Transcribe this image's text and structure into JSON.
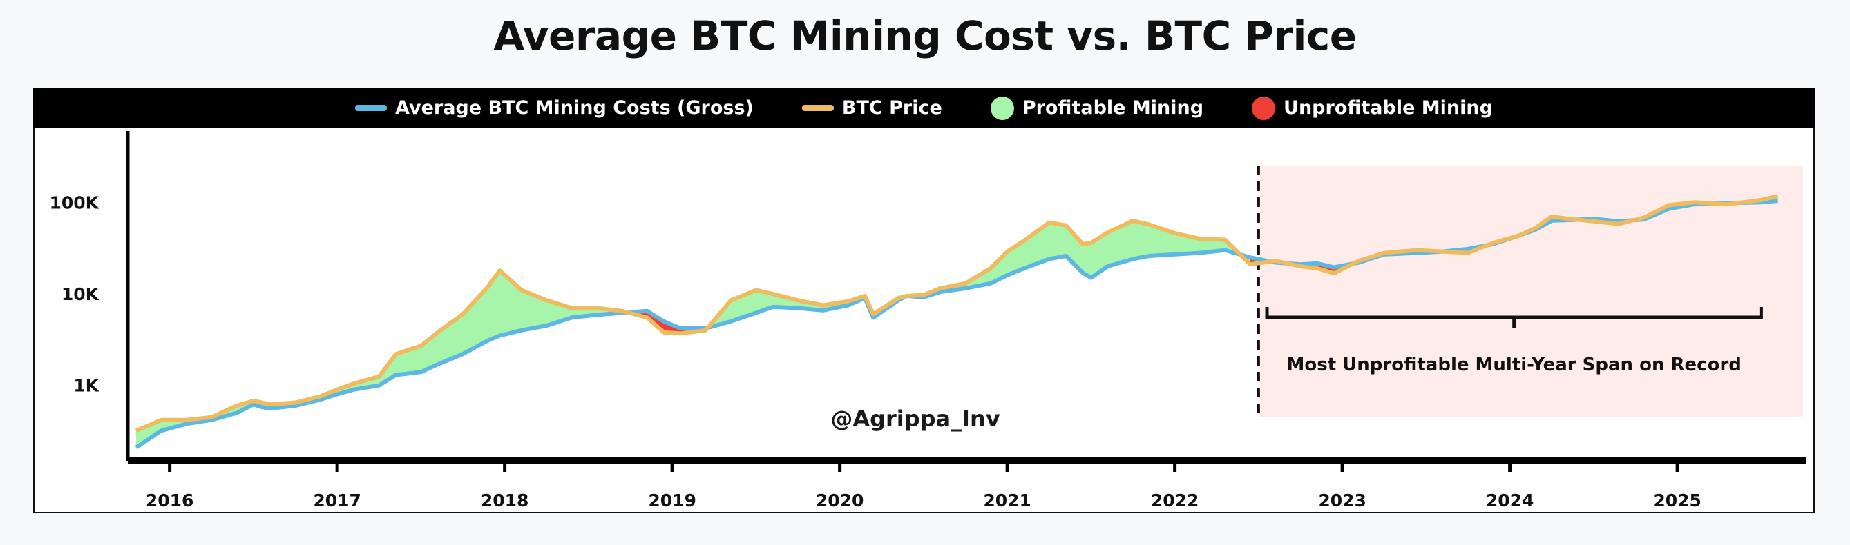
{
  "chart_data": {
    "type": "line",
    "title": "Average BTC Mining Cost vs. BTC Price",
    "y_scale": "log",
    "ylim": [
      150,
      600000
    ],
    "xlim": [
      2015.75,
      2025.75
    ],
    "y_ticks": [
      {
        "value": 1000,
        "label": "1K"
      },
      {
        "value": 10000,
        "label": "10K"
      },
      {
        "value": 100000,
        "label": "100K"
      }
    ],
    "x_ticks": [
      {
        "value": 2016,
        "label": "2016"
      },
      {
        "value": 2017,
        "label": "2017"
      },
      {
        "value": 2018,
        "label": "2018"
      },
      {
        "value": 2019,
        "label": "2019"
      },
      {
        "value": 2020,
        "label": "2020"
      },
      {
        "value": 2021,
        "label": "2021"
      },
      {
        "value": 2022,
        "label": "2022"
      },
      {
        "value": 2023,
        "label": "2023"
      },
      {
        "value": 2024,
        "label": "2024"
      },
      {
        "value": 2025,
        "label": "2025"
      }
    ],
    "x": [
      2015.8,
      2015.95,
      2016.1,
      2016.25,
      2016.4,
      2016.5,
      2016.55,
      2016.6,
      2016.75,
      2016.9,
      2017.0,
      2017.1,
      2017.25,
      2017.35,
      2017.5,
      2017.6,
      2017.75,
      2017.9,
      2017.97,
      2018.1,
      2018.25,
      2018.4,
      2018.55,
      2018.7,
      2018.85,
      2018.95,
      2019.05,
      2019.2,
      2019.35,
      2019.5,
      2019.6,
      2019.75,
      2019.9,
      2020.05,
      2020.15,
      2020.2,
      2020.35,
      2020.4,
      2020.5,
      2020.6,
      2020.75,
      2020.9,
      2021.0,
      2021.1,
      2021.25,
      2021.35,
      2021.45,
      2021.5,
      2021.6,
      2021.75,
      2021.85,
      2022.0,
      2022.15,
      2022.3,
      2022.45,
      2022.6,
      2022.75,
      2022.85,
      2022.95,
      2023.1,
      2023.25,
      2023.45,
      2023.6,
      2023.75,
      2023.9,
      2024.05,
      2024.15,
      2024.25,
      2024.35,
      2024.5,
      2024.65,
      2024.8,
      2024.95,
      2025.1,
      2025.3,
      2025.5,
      2025.6
    ],
    "series": [
      {
        "name": "BTC Price",
        "color": "#f0bb5f",
        "values": [
          320,
          420,
          420,
          450,
          600,
          680,
          650,
          620,
          650,
          760,
          900,
          1050,
          1250,
          2200,
          2700,
          3800,
          6000,
          12000,
          18000,
          11000,
          8500,
          7000,
          7000,
          6500,
          5500,
          3800,
          3700,
          4000,
          8500,
          11000,
          10000,
          8500,
          7500,
          8300,
          9500,
          6000,
          9000,
          9500,
          9700,
          11500,
          13000,
          19000,
          29000,
          38000,
          60000,
          56000,
          35000,
          36000,
          47000,
          63000,
          57000,
          46000,
          40000,
          39000,
          21000,
          23000,
          20000,
          19000,
          16800,
          23000,
          28000,
          30000,
          29000,
          28000,
          36000,
          43000,
          52000,
          70000,
          66000,
          62000,
          58000,
          68000,
          93000,
          100000,
          95000,
          106000,
          117000
        ]
      },
      {
        "name": "Average BTC Mining Costs (Gross)",
        "color": "#5cb8e2",
        "values": [
          210,
          320,
          380,
          420,
          500,
          620,
          580,
          560,
          600,
          700,
          800,
          900,
          1000,
          1300,
          1400,
          1700,
          2200,
          3100,
          3500,
          4000,
          4500,
          5500,
          5900,
          6200,
          6500,
          5000,
          4200,
          4200,
          5000,
          6200,
          7200,
          7000,
          6600,
          7500,
          9000,
          5500,
          8500,
          9500,
          9200,
          10500,
          11500,
          13000,
          16000,
          19000,
          24000,
          26000,
          17000,
          15000,
          20000,
          24000,
          26000,
          27000,
          28000,
          30000,
          25000,
          22000,
          21000,
          21500,
          19500,
          22000,
          27000,
          28000,
          29000,
          31000,
          35000,
          43000,
          50000,
          63000,
          64000,
          66000,
          62000,
          65000,
          85000,
          95000,
          98000,
          100000,
          104000
        ]
      }
    ],
    "fills": [
      {
        "name": "Profitable Mining",
        "color": "#a7f5ab"
      },
      {
        "name": "Unprofitable Mining",
        "color": "#ee3f34"
      }
    ],
    "highlight_region": {
      "x_start": 2022.5,
      "x_end": 2025.75,
      "color": "#fdecea",
      "label": "Most Unprofitable Multi-Year Span on Record",
      "bracket": [
        2022.55,
        2025.5
      ]
    },
    "watermark": "@Agrippa_Inv",
    "legend": [
      "Average BTC Mining Costs (Gross)",
      "BTC Price",
      "Profitable Mining",
      "Unprofitable Mining"
    ],
    "legend_position": "top"
  }
}
